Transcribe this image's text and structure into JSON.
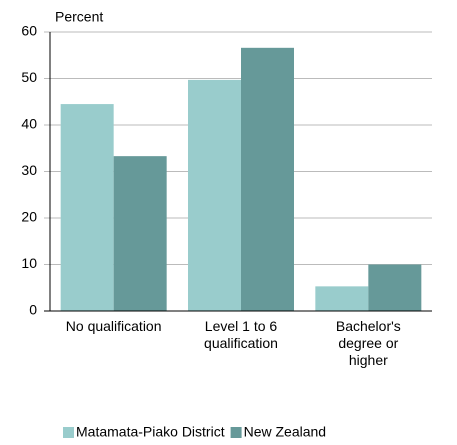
{
  "chart_data": {
    "type": "bar",
    "y_axis_label": "Percent",
    "categories": [
      "No qualification",
      "Level 1 to 6 qualification",
      "Bachelor's degree or higher"
    ],
    "series": [
      {
        "name": "Matamata-Piako District",
        "color": "#99cccc",
        "values": [
          44.5,
          49.7,
          5.3
        ]
      },
      {
        "name": "New Zealand",
        "color": "#669999",
        "values": [
          33.3,
          56.6,
          10.0
        ]
      }
    ],
    "ylim": [
      0,
      60
    ],
    "yticks": [
      0,
      10,
      20,
      30,
      40,
      50,
      60
    ],
    "grid": true,
    "legend": "bottom"
  }
}
